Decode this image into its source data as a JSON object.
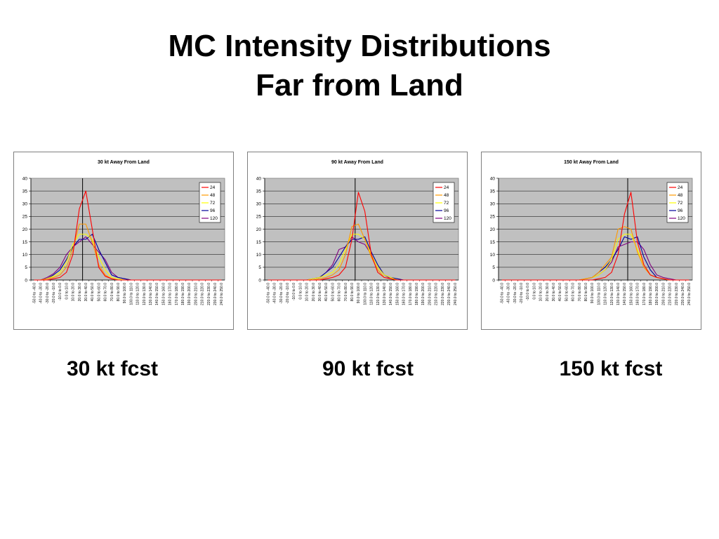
{
  "slide": {
    "title_line1": "MC Intensity Distributions",
    "title_line2": "Far from Land",
    "captions": [
      "30 kt fcst",
      "90 kt fcst",
      "150 kt fcst"
    ]
  },
  "chart_data": [
    {
      "type": "line",
      "title": "30 kt  Away From Land",
      "ylim": [
        0,
        40
      ],
      "yticks": [
        0,
        5,
        10,
        15,
        20,
        25,
        30,
        35,
        40
      ],
      "grid": true,
      "legend": "top-right",
      "vline_at_index": 8,
      "categories": [
        "-50.0 to  -40.0",
        "-40.0 to  -30.0",
        "-30.0 to  -20.0",
        "-20.0 to  -10.0",
        "-10.0 to   0.0",
        "0.0 to   10.0",
        "10.0 to  20.0",
        "20.0 to  30.0",
        "30.0 to  40.0",
        "40.0 to  50.0",
        "50.0 to  60.0",
        "60.0 to  70.0",
        "70.0 to  80.0",
        "80.0 to  90.0",
        "90.0 to  100.0",
        "100.0 to  110.0",
        "110.0 to  120.0",
        "120.0 to  130.0",
        "130.0 to  140.0",
        "140.0 to  150.0",
        "150.0 to  160.0",
        "160.0 to  170.0",
        "170.0 to  180.0",
        "180.0 to  190.0",
        "190.0 to  200.0",
        "200.0 to  210.0",
        "210.0 to  220.0",
        "220.0 to  230.0",
        "230.0 to  240.0",
        "240.0 to  250.0"
      ],
      "series": [
        {
          "name": "24",
          "color": "#ff0000",
          "values": [
            0,
            0,
            0,
            0.5,
            1,
            3,
            10,
            28,
            35,
            20,
            5,
            1.5,
            0.5,
            0,
            0,
            0,
            0,
            0,
            0,
            0,
            0,
            0,
            0,
            0,
            0,
            0,
            0,
            0,
            0,
            0
          ]
        },
        {
          "name": "48",
          "color": "#ff9900",
          "values": [
            0,
            0,
            0.5,
            1,
            2,
            5,
            12,
            22,
            22,
            15,
            6,
            2,
            0.5,
            0,
            0,
            0,
            0,
            0,
            0,
            0,
            0,
            0,
            0,
            0,
            0,
            0,
            0,
            0,
            0,
            0
          ]
        },
        {
          "name": "72",
          "color": "#ffff00",
          "values": [
            0,
            0,
            0.5,
            1.5,
            3,
            7,
            14,
            18,
            18,
            16,
            9,
            4,
            1,
            0.5,
            0,
            0,
            0,
            0,
            0,
            0,
            0,
            0,
            0,
            0,
            0,
            0,
            0,
            0,
            0,
            0
          ]
        },
        {
          "name": "96",
          "color": "#000099",
          "values": [
            0,
            0,
            0.5,
            2,
            4,
            8,
            13,
            16,
            16,
            18,
            12,
            7,
            2,
            1,
            0.5,
            0,
            0,
            0,
            0,
            0,
            0,
            0,
            0,
            0,
            0,
            0,
            0,
            0,
            0,
            0
          ]
        },
        {
          "name": "120",
          "color": "#800080",
          "values": [
            0,
            0,
            1,
            2.5,
            5,
            10,
            13,
            15,
            17,
            14,
            11,
            8,
            3,
            1,
            0.5,
            0,
            0,
            0,
            0,
            0,
            0,
            0,
            0,
            0,
            0,
            0,
            0,
            0,
            0,
            0
          ]
        }
      ]
    },
    {
      "type": "line",
      "title": "90 kt  Away From Land",
      "ylim": [
        0,
        40
      ],
      "yticks": [
        0,
        5,
        10,
        15,
        20,
        25,
        30,
        35,
        40
      ],
      "grid": true,
      "legend": "top-right",
      "vline_at_index": 14,
      "categories": [
        "-50.0 to  -40.0",
        "-40.0 to  -30.0",
        "-30.0 to  -20.0",
        "-20.0 to  -10.0",
        "-10.0 to   0.0",
        "0.0 to   10.0",
        "10.0 to  20.0",
        "20.0 to  30.0",
        "30.0 to  40.0",
        "40.0 to  50.0",
        "50.0 to  60.0",
        "60.0 to  70.0",
        "70.0 to  80.0",
        "80.0 to  90.0",
        "90.0 to  100.0",
        "100.0 to  110.0",
        "110.0 to  120.0",
        "120.0 to  130.0",
        "130.0 to  140.0",
        "140.0 to  150.0",
        "150.0 to  160.0",
        "160.0 to  170.0",
        "170.0 to  180.0",
        "180.0 to  190.0",
        "190.0 to  200.0",
        "200.0 to  210.0",
        "210.0 to  220.0",
        "220.0 to  230.0",
        "230.0 to  240.0",
        "240.0 to  250.0"
      ],
      "series": [
        {
          "name": "24",
          "color": "#ff0000",
          "values": [
            0,
            0,
            0,
            0,
            0,
            0,
            0,
            0,
            0,
            0.5,
            1,
            2,
            5,
            16,
            34.5,
            27,
            10,
            3,
            1,
            0.5,
            0,
            0,
            0,
            0,
            0,
            0,
            0,
            0,
            0,
            0
          ]
        },
        {
          "name": "48",
          "color": "#ff9900",
          "values": [
            0,
            0,
            0,
            0,
            0,
            0,
            0,
            0,
            0.5,
            1,
            2,
            4,
            10,
            21,
            22,
            16,
            9,
            4,
            1,
            0.5,
            0,
            0,
            0,
            0,
            0,
            0,
            0,
            0,
            0,
            0
          ]
        },
        {
          "name": "72",
          "color": "#ffff00",
          "values": [
            0,
            0,
            0,
            0,
            0,
            0,
            0,
            0.5,
            1,
            2,
            3,
            6,
            12,
            18,
            18,
            16,
            10,
            5,
            2,
            1,
            0,
            0,
            0,
            0,
            0,
            0,
            0,
            0,
            0,
            0
          ]
        },
        {
          "name": "96",
          "color": "#000099",
          "values": [
            0,
            0,
            0,
            0,
            0,
            0,
            0,
            0.5,
            1,
            3,
            5,
            9,
            13,
            16,
            16,
            17,
            11,
            6,
            2,
            1,
            0.5,
            0,
            0,
            0,
            0,
            0,
            0,
            0,
            0,
            0
          ]
        },
        {
          "name": "120",
          "color": "#800080",
          "values": [
            0,
            0,
            0,
            0,
            0,
            0,
            0,
            0.5,
            1,
            3,
            6,
            12,
            13,
            17,
            15,
            14,
            10,
            5,
            2,
            0.5,
            0,
            0,
            0,
            0,
            0,
            0,
            0,
            0,
            0,
            0
          ]
        }
      ]
    },
    {
      "type": "line",
      "title": "150 kt  Away From Land",
      "ylim": [
        0,
        40
      ],
      "yticks": [
        0,
        5,
        10,
        15,
        20,
        25,
        30,
        35,
        40
      ],
      "grid": true,
      "legend": "top-right",
      "vline_at_index": 20,
      "categories": [
        "-50.0 to  -40.0",
        "-40.0 to  -30.0",
        "-30.0 to  -20.0",
        "-20.0 to  -10.0",
        "-10.0 to   0.0",
        "0.0 to   10.0",
        "10.0 to  20.0",
        "20.0 to  30.0",
        "30.0 to  40.0",
        "40.0 to  50.0",
        "50.0 to  60.0",
        "60.0 to  70.0",
        "70.0 to  80.0",
        "80.0 to  90.0",
        "90.0 to  100.0",
        "100.0 to  110.0",
        "110.0 to  120.0",
        "120.0 to  130.0",
        "130.0 to  140.0",
        "140.0 to  150.0",
        "150.0 to  160.0",
        "160.0 to  170.0",
        "170.0 to  180.0",
        "180.0 to  190.0",
        "190.0 to  200.0",
        "200.0 to  210.0",
        "210.0 to  220.0",
        "220.0 to  230.0",
        "230.0 to  240.0",
        "240.0 to  250.0"
      ],
      "series": [
        {
          "name": "24",
          "color": "#ff0000",
          "values": [
            0,
            0,
            0,
            0,
            0,
            0,
            0,
            0,
            0,
            0,
            0,
            0,
            0,
            0,
            0,
            0.5,
            1,
            3,
            10,
            26,
            34.5,
            15,
            6,
            2,
            1,
            0.5,
            0,
            0,
            0,
            0
          ]
        },
        {
          "name": "48",
          "color": "#ff9900",
          "values": [
            0,
            0,
            0,
            0,
            0,
            0,
            0,
            0,
            0,
            0,
            0,
            0,
            0,
            0.5,
            1,
            3,
            6,
            9,
            20,
            21,
            20,
            11,
            5,
            2,
            1,
            0.5,
            0,
            0,
            0,
            0
          ]
        },
        {
          "name": "72",
          "color": "#ffff00",
          "values": [
            0,
            0,
            0,
            0,
            0,
            0,
            0,
            0,
            0,
            0,
            0,
            0,
            0,
            0.5,
            1,
            2,
            4,
            8,
            16,
            18,
            18,
            12,
            6,
            2,
            1,
            0.5,
            0,
            0,
            0,
            0
          ]
        },
        {
          "name": "96",
          "color": "#000099",
          "values": [
            0,
            0,
            0,
            0,
            0,
            0,
            0,
            0,
            0,
            0,
            0,
            0,
            0,
            0.5,
            1,
            3,
            5,
            8,
            12,
            17,
            16,
            17,
            9,
            4,
            1,
            0.5,
            0,
            0,
            0,
            0
          ]
        },
        {
          "name": "120",
          "color": "#800080",
          "values": [
            0,
            0,
            0,
            0,
            0,
            0,
            0,
            0,
            0,
            0,
            0,
            0,
            0,
            0.5,
            1,
            2,
            4,
            7,
            13,
            14,
            15,
            15,
            12,
            6,
            2,
            1,
            0.5,
            0,
            0,
            0
          ]
        }
      ]
    }
  ]
}
